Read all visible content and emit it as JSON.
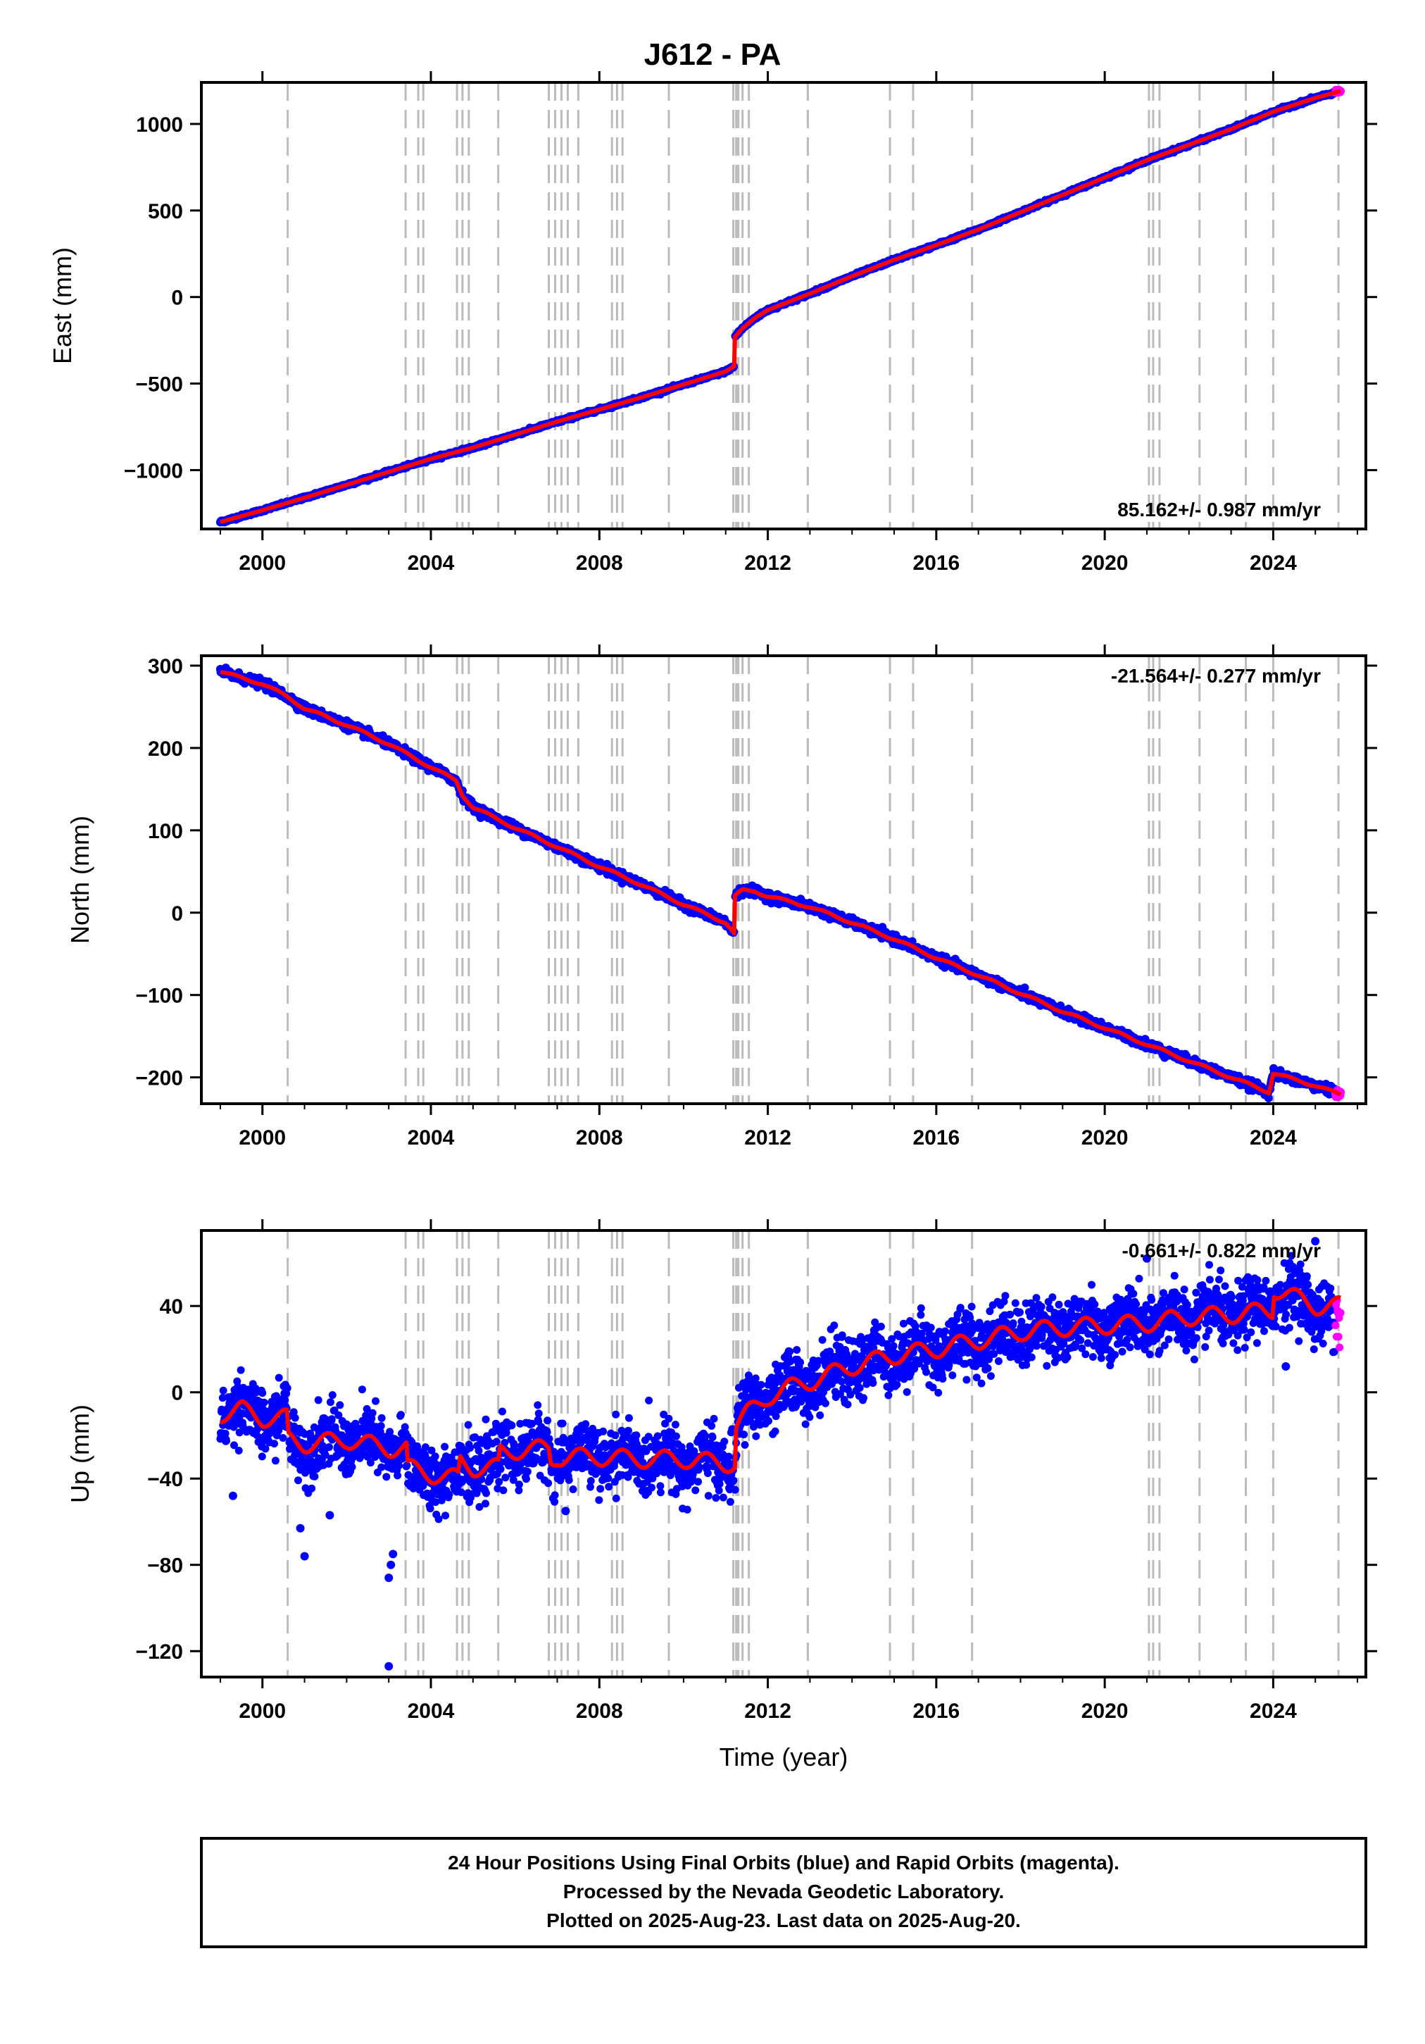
{
  "title": "J612 - PA",
  "footer": {
    "lines": [
      "24 Hour Positions Using Final Orbits (blue) and Rapid Orbits (magenta).",
      "Processed by the Nevada Geodetic Laboratory.",
      "Plotted on 2025-Aug-23. Last data on 2025-Aug-20."
    ]
  },
  "colors": {
    "final_orbits": "#0000ff",
    "rapid_orbits": "#ff00ff",
    "model_fit": "#ff0000",
    "event_lines": "#bbbbbb"
  },
  "chart_data": [
    {
      "type": "scatter",
      "name": "east",
      "xlabel": "",
      "ylabel": "East (mm)",
      "xlim": [
        1998.55,
        2026.2
      ],
      "ylim": [
        -1340,
        1240
      ],
      "xticks": [
        2000,
        2004,
        2008,
        2012,
        2016,
        2020,
        2024
      ],
      "yticks": [
        -1000,
        -500,
        0,
        500,
        1000
      ],
      "rate_label": "85.162+/- 0.987 mm/yr",
      "rate_position": "bottom-right",
      "event_lines": [
        2000.6,
        2003.4,
        2003.7,
        2003.82,
        2004.62,
        2004.75,
        2004.9,
        2005.6,
        2006.8,
        2006.95,
        2007.1,
        2007.25,
        2007.5,
        2008.3,
        2008.42,
        2008.55,
        2009.65,
        2011.18,
        2011.25,
        2011.3,
        2011.4,
        2011.55,
        2012.95,
        2014.9,
        2015.45,
        2016.85,
        2021.05,
        2021.15,
        2021.3,
        2022.25,
        2023.35,
        2024.0,
        2025.55
      ],
      "series": [
        {
          "name": "final orbits",
          "color": "#0000ff",
          "x": [
            1999.0,
            2000.0,
            2001.0,
            2002.0,
            2003.0,
            2004.0,
            2005.0,
            2006.0,
            2007.0,
            2008.0,
            2009.0,
            2010.0,
            2011.0,
            2011.2,
            2011.22,
            2011.4,
            2011.7,
            2012.0,
            2013.0,
            2014.0,
            2015.0,
            2016.0,
            2017.0,
            2018.0,
            2019.0,
            2020.0,
            2021.0,
            2022.0,
            2023.0,
            2024.0,
            2025.0,
            2025.45
          ],
          "y": [
            -1300,
            -1232,
            -1160,
            -1085,
            -1010,
            -935,
            -870,
            -795,
            -720,
            -650,
            -580,
            -505,
            -430,
            -400,
            -230,
            -180,
            -120,
            -75,
            20,
            120,
            215,
            300,
            390,
            490,
            590,
            690,
            790,
            880,
            970,
            1070,
            1150,
            1180
          ]
        },
        {
          "name": "rapid orbits",
          "color": "#ff00ff",
          "x": [
            2025.48,
            2025.52,
            2025.56,
            2025.6
          ],
          "y": [
            1183,
            1186,
            1188,
            1190
          ]
        },
        {
          "name": "model",
          "color": "#ff0000",
          "x": [
            1999.0,
            2000.0,
            2001.0,
            2002.0,
            2003.0,
            2004.0,
            2005.0,
            2006.0,
            2007.0,
            2008.0,
            2009.0,
            2010.0,
            2011.0,
            2011.2,
            2011.22,
            2011.4,
            2011.7,
            2012.0,
            2013.0,
            2014.0,
            2015.0,
            2016.0,
            2017.0,
            2018.0,
            2019.0,
            2020.0,
            2021.0,
            2022.0,
            2023.0,
            2024.0,
            2025.0,
            2025.6
          ],
          "y": [
            -1300,
            -1232,
            -1160,
            -1085,
            -1010,
            -935,
            -870,
            -795,
            -720,
            -650,
            -580,
            -505,
            -430,
            -400,
            -230,
            -180,
            -120,
            -75,
            20,
            120,
            215,
            300,
            390,
            490,
            590,
            690,
            790,
            880,
            970,
            1070,
            1150,
            1190
          ]
        }
      ]
    },
    {
      "type": "scatter",
      "name": "north",
      "xlabel": "",
      "ylabel": "North (mm)",
      "xlim": [
        1998.55,
        2026.2
      ],
      "ylim": [
        -232,
        312
      ],
      "xticks": [
        2000,
        2004,
        2008,
        2012,
        2016,
        2020,
        2024
      ],
      "yticks": [
        -200,
        -100,
        0,
        100,
        200,
        300
      ],
      "rate_label": "-21.564+/- 0.277 mm/yr",
      "rate_position": "top-right",
      "event_lines": [
        2000.6,
        2003.4,
        2003.7,
        2003.82,
        2004.62,
        2004.75,
        2004.9,
        2005.6,
        2006.8,
        2006.95,
        2007.1,
        2007.25,
        2007.5,
        2008.3,
        2008.42,
        2008.55,
        2009.65,
        2011.18,
        2011.25,
        2011.3,
        2011.4,
        2011.55,
        2012.95,
        2014.9,
        2015.45,
        2016.85,
        2021.05,
        2021.15,
        2021.3,
        2022.25,
        2023.35,
        2024.0,
        2025.55
      ],
      "series": [
        {
          "name": "final orbits",
          "color": "#0000ff",
          "x": [
            1999.0,
            1999.5,
            2000.0,
            2000.6,
            2001.0,
            2002.0,
            2003.0,
            2003.7,
            2004.0,
            2004.6,
            2004.75,
            2005.0,
            2006.0,
            2007.0,
            2008.0,
            2009.0,
            2010.0,
            2011.0,
            2011.2,
            2011.22,
            2011.4,
            2011.7,
            2012.0,
            2013.0,
            2014.0,
            2015.0,
            2016.0,
            2017.0,
            2018.0,
            2019.0,
            2020.0,
            2021.0,
            2022.0,
            2023.0,
            2023.9,
            2024.0,
            2025.0,
            2025.45
          ],
          "y": [
            293,
            285,
            278,
            262,
            248,
            228,
            205,
            185,
            177,
            160,
            143,
            128,
            103,
            80,
            56,
            34,
            10,
            -12,
            -25,
            20,
            27,
            26,
            20,
            7,
            -12,
            -32,
            -55,
            -76,
            -98,
            -120,
            -140,
            -160,
            -180,
            -200,
            -218,
            -195,
            -210,
            -218
          ]
        },
        {
          "name": "rapid orbits",
          "color": "#ff00ff",
          "x": [
            2025.48,
            2025.52,
            2025.56,
            2025.6
          ],
          "y": [
            -219,
            -220,
            -220,
            -221
          ]
        },
        {
          "name": "model",
          "color": "#ff0000",
          "x": [
            1999.0,
            1999.5,
            2000.0,
            2000.6,
            2001.0,
            2002.0,
            2003.0,
            2003.7,
            2004.0,
            2004.6,
            2004.75,
            2005.0,
            2006.0,
            2007.0,
            2008.0,
            2009.0,
            2010.0,
            2011.0,
            2011.2,
            2011.22,
            2011.4,
            2011.7,
            2012.0,
            2013.0,
            2014.0,
            2015.0,
            2016.0,
            2017.0,
            2018.0,
            2019.0,
            2020.0,
            2021.0,
            2022.0,
            2023.0,
            2023.9,
            2024.0,
            2025.0,
            2025.6
          ],
          "y": [
            293,
            285,
            278,
            262,
            248,
            228,
            205,
            185,
            177,
            160,
            143,
            128,
            103,
            80,
            56,
            34,
            10,
            -12,
            -25,
            20,
            27,
            26,
            20,
            7,
            -12,
            -32,
            -55,
            -76,
            -98,
            -120,
            -140,
            -160,
            -180,
            -200,
            -218,
            -195,
            -210,
            -221
          ]
        }
      ]
    },
    {
      "type": "scatter",
      "name": "up",
      "xlabel": "Time (year)",
      "ylabel": "Up (mm)",
      "xlim": [
        1998.55,
        2026.2
      ],
      "ylim": [
        -132,
        75
      ],
      "xticks": [
        2000,
        2004,
        2008,
        2012,
        2016,
        2020,
        2024
      ],
      "yticks": [
        -120,
        -80,
        -40,
        0,
        40
      ],
      "rate_label": "-0.661+/- 0.822 mm/yr",
      "rate_position": "top-right",
      "event_lines": [
        2000.6,
        2003.4,
        2003.7,
        2003.82,
        2004.62,
        2004.75,
        2004.9,
        2005.6,
        2006.8,
        2006.95,
        2007.1,
        2007.25,
        2007.5,
        2008.3,
        2008.42,
        2008.55,
        2009.65,
        2011.18,
        2011.25,
        2011.3,
        2011.4,
        2011.55,
        2012.95,
        2014.9,
        2015.45,
        2016.85,
        2021.05,
        2021.15,
        2021.3,
        2022.25,
        2023.35,
        2024.0,
        2025.55
      ],
      "outliers": [
        [
          2003.0,
          -127
        ],
        [
          2003.0,
          -86
        ],
        [
          2003.05,
          -80
        ],
        [
          2003.1,
          -75
        ],
        [
          2001.0,
          -76
        ],
        [
          2000.9,
          -63
        ],
        [
          2001.6,
          -57
        ],
        [
          1999.3,
          -48
        ],
        [
          2007.2,
          -55
        ],
        [
          2021.0,
          62
        ],
        [
          2025.0,
          70
        ],
        [
          2024.3,
          12
        ]
      ],
      "series": [
        {
          "name": "final orbits",
          "color": "#0000ff",
          "noise": 7,
          "x": [
            1999.0,
            1999.5,
            2000.0,
            2000.58,
            2000.62,
            2001.0,
            2002.0,
            2003.0,
            2003.42,
            2003.45,
            2004.0,
            2004.65,
            2004.7,
            2005.0,
            2005.6,
            2005.65,
            2006.0,
            2006.8,
            2006.85,
            2007.0,
            2008.0,
            2009.0,
            2010.0,
            2011.0,
            2011.22,
            2011.25,
            2011.5,
            2012.0,
            2012.5,
            2013.0,
            2014.0,
            2015.0,
            2016.0,
            2017.0,
            2018.0,
            2019.0,
            2020.0,
            2021.0,
            2022.0,
            2023.0,
            2023.98,
            2024.02,
            2025.0,
            2025.4,
            2025.45
          ],
          "y": [
            -10,
            -8,
            -12,
            -12,
            -22,
            -24,
            -22,
            -26,
            -26,
            -35,
            -38,
            -40,
            -32,
            -35,
            -35,
            -28,
            -27,
            -26,
            -32,
            -30,
            -30,
            -31,
            -31,
            -33,
            -33,
            -15,
            -10,
            -2,
            2,
            5,
            12,
            17,
            20,
            24,
            28,
            30,
            31,
            32,
            35,
            36,
            38,
            48,
            40,
            36,
            32
          ]
        },
        {
          "name": "rapid orbits",
          "color": "#ff00ff",
          "noise": 6,
          "x": [
            2025.48,
            2025.5,
            2025.52,
            2025.54,
            2025.56,
            2025.58,
            2025.6
          ],
          "y": [
            38,
            30,
            42,
            26,
            35,
            22,
            40
          ]
        },
        {
          "name": "model",
          "color": "#ff0000",
          "x": [
            1999.0,
            1999.5,
            2000.0,
            2000.58,
            2000.62,
            2001.0,
            2002.0,
            2003.0,
            2003.42,
            2003.45,
            2004.0,
            2004.65,
            2004.7,
            2005.0,
            2005.6,
            2005.65,
            2006.0,
            2006.8,
            2006.85,
            2007.0,
            2008.0,
            2009.0,
            2010.0,
            2011.0,
            2011.22,
            2011.25,
            2011.5,
            2012.0,
            2012.5,
            2013.0,
            2014.0,
            2015.0,
            2016.0,
            2017.0,
            2018.0,
            2019.0,
            2020.0,
            2021.0,
            2022.0,
            2023.0,
            2023.98,
            2024.02,
            2025.0,
            2025.6
          ],
          "y": [
            -10,
            -8,
            -12,
            -12,
            -22,
            -24,
            -22,
            -26,
            -26,
            -35,
            -38,
            -40,
            -32,
            -35,
            -35,
            -28,
            -27,
            -26,
            -32,
            -30,
            -30,
            -31,
            -31,
            -33,
            -33,
            -15,
            -10,
            -2,
            2,
            5,
            12,
            17,
            20,
            24,
            28,
            30,
            31,
            32,
            35,
            36,
            38,
            48,
            40,
            40
          ]
        }
      ]
    }
  ]
}
